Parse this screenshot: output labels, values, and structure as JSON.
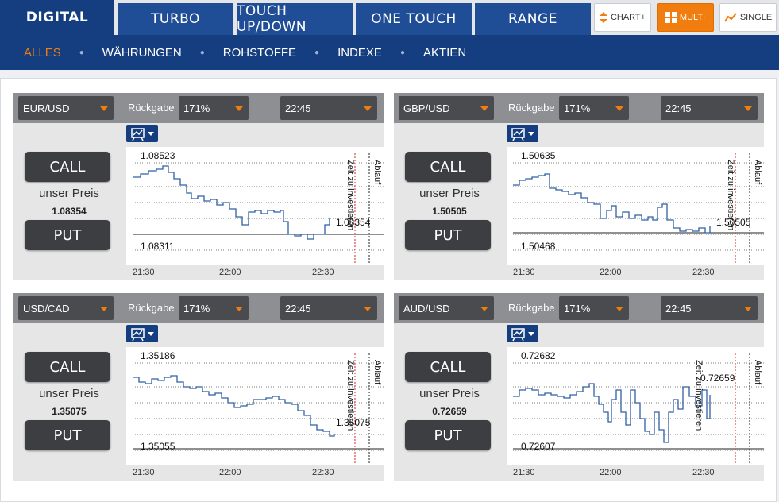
{
  "tabs": {
    "digital": "DIGITAL",
    "turbo": "TURBO",
    "touch": "TOUCH UP/DOWN",
    "onetouch": "ONE TOUCH",
    "range": "RANGE"
  },
  "views": {
    "chart": "CHART+",
    "multi": "MULTI",
    "single": "SINGLE"
  },
  "colors": {
    "accent": "#f07d0d",
    "navy": "#153e80",
    "line": "#2f5fa3",
    "expiry": "#d9261c"
  },
  "subnav": [
    "ALLES",
    "WÄHRUNGEN",
    "ROHSTOFFE",
    "INDEXE",
    "AKTIEN"
  ],
  "common": {
    "rueckgabe_label": "Rückgabe",
    "call": "CALL",
    "put": "PUT",
    "our_price": "unser Preis",
    "zeit_label": "Zeit zu investieren",
    "ablauf_label": "Ablauf",
    "times": [
      "21:30",
      "22:00",
      "22:30"
    ]
  },
  "panels": [
    {
      "pair": "EUR/USD",
      "return": "171%",
      "expiry": "22:45",
      "price": "1.08354",
      "high": "1.08523",
      "low": "1.08311",
      "current": "1.08354"
    },
    {
      "pair": "GBP/USD",
      "return": "171%",
      "expiry": "22:45",
      "price": "1.50505",
      "high": "1.50635",
      "low": "1.50468",
      "current": "1.50505"
    },
    {
      "pair": "USD/CAD",
      "return": "171%",
      "expiry": "22:45",
      "price": "1.35075",
      "high": "1.35186",
      "low": "1.35055",
      "current": "1.35075"
    },
    {
      "pair": "AUD/USD",
      "return": "171%",
      "expiry": "22:45",
      "price": "0.72659",
      "high": "0.72682",
      "low": "0.72607",
      "current": "0.72659"
    }
  ]
}
